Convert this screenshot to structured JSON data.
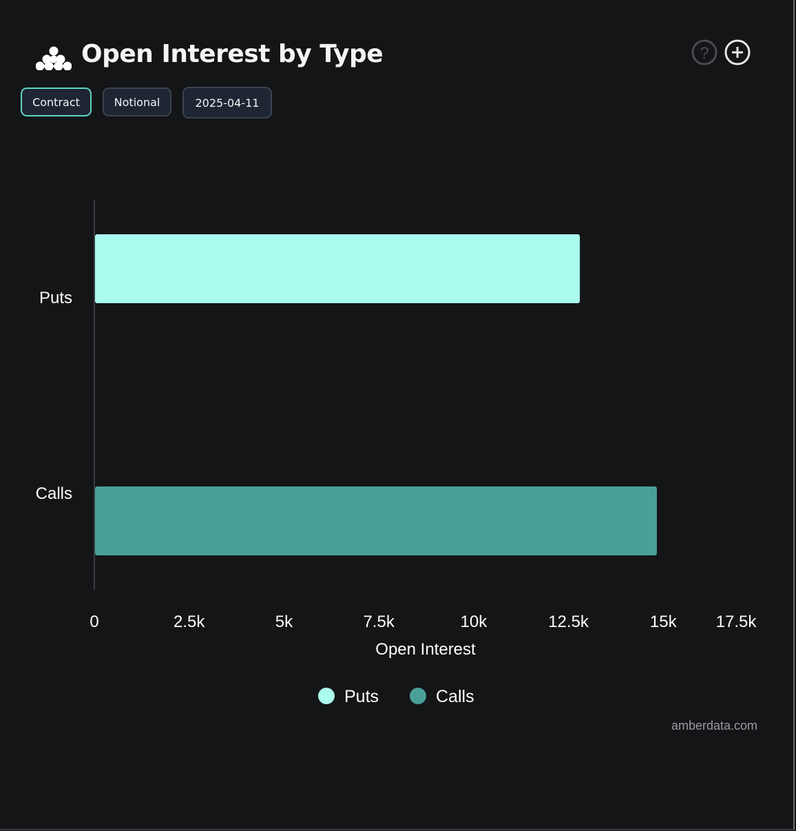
{
  "header": {
    "title": "Open Interest by Type",
    "logo": "amberdata-logo",
    "help_icon": "question-circle-icon",
    "add_icon": "plus-circle-icon"
  },
  "controls": {
    "buttons": [
      {
        "label": "Contract",
        "active": true
      },
      {
        "label": "Notional",
        "active": false
      },
      {
        "label": "2025-04-11",
        "active": false
      }
    ]
  },
  "chart_data": {
    "type": "bar",
    "orientation": "horizontal",
    "categories": [
      "Puts",
      "Calls"
    ],
    "values": [
      12800,
      14830
    ],
    "colors": [
      "#aafcee",
      "#4aa099"
    ],
    "xlabel": "Open Interest",
    "ylabel": "",
    "xlim": [
      0,
      17500
    ],
    "xticks": [
      "0",
      "2.5k",
      "5k",
      "7.5k",
      "10k",
      "12.5k",
      "15k",
      "17.5k"
    ],
    "grid": false,
    "legend": {
      "placement": "bottom",
      "entries": [
        "Puts",
        "Calls"
      ]
    }
  },
  "watermark": "amberdata.com"
}
